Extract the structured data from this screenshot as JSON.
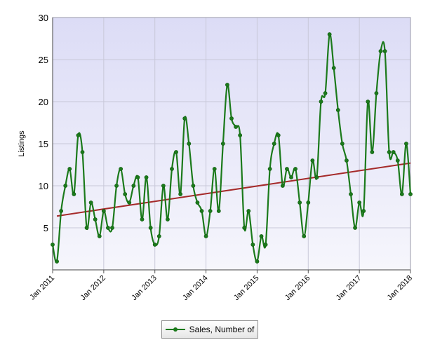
{
  "chart_data": {
    "type": "line",
    "ylabel": "Listings",
    "xlabel": "",
    "ylim": [
      0,
      30
    ],
    "yticks": [
      5,
      10,
      15,
      20,
      25,
      30
    ],
    "x_tick_labels": [
      "Jan 2011",
      "Jan 2012",
      "Jan 2013",
      "Jan 2014",
      "Jan 2015",
      "Jan 2016",
      "Jan 2017",
      "Jan 2018"
    ],
    "x_start": "Jan 2011",
    "grid": true,
    "legend_position": "bottom-center",
    "series": [
      {
        "name": "Sales, Number of",
        "color": "#1b7a1b",
        "values": [
          3,
          1,
          7,
          10,
          12,
          9,
          16,
          14,
          5,
          8,
          6,
          4,
          7,
          5,
          5,
          10,
          12,
          9,
          8,
          10,
          11,
          6,
          11,
          5,
          3,
          4,
          10,
          6,
          12,
          14,
          9,
          18,
          15,
          10,
          8,
          7,
          4,
          7,
          12,
          7,
          15,
          22,
          18,
          17,
          16,
          5,
          7,
          3,
          1,
          4,
          3,
          12,
          15,
          16,
          10,
          12,
          11,
          12,
          8,
          4,
          8,
          13,
          11,
          20,
          21,
          28,
          24,
          19,
          15,
          13,
          9,
          5,
          8,
          7,
          20,
          14,
          21,
          26,
          26,
          14,
          14,
          13,
          9,
          15,
          9
        ]
      }
    ],
    "trendline": {
      "color": "#a52a2a",
      "start": 6.4,
      "end": 12.7
    }
  }
}
